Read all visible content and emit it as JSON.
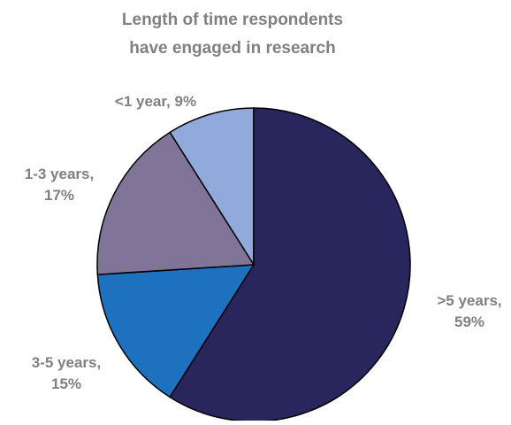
{
  "chart_data": {
    "type": "pie",
    "title_lines": [
      "Length of time respondents",
      "have engaged in research"
    ],
    "slices": [
      {
        "label": "<1 year",
        "value": 9,
        "display": [
          "<1 year, 9%"
        ],
        "color": "#92A9DC"
      },
      {
        "label": ">5 years",
        "value": 59,
        "display": [
          ">5 years,",
          "59%"
        ],
        "color": "#29265E"
      },
      {
        "label": "3-5 years",
        "value": 15,
        "display": [
          "3-5 years,",
          "15%"
        ],
        "color": "#1E71BE"
      },
      {
        "label": "1-3 years",
        "value": 17,
        "display": [
          "1-3 years,",
          "17%"
        ],
        "color": "#807499"
      }
    ],
    "slice_order_note": "clockwise",
    "outline_color": "#000000",
    "label_color": "#808080",
    "legend": "none"
  }
}
